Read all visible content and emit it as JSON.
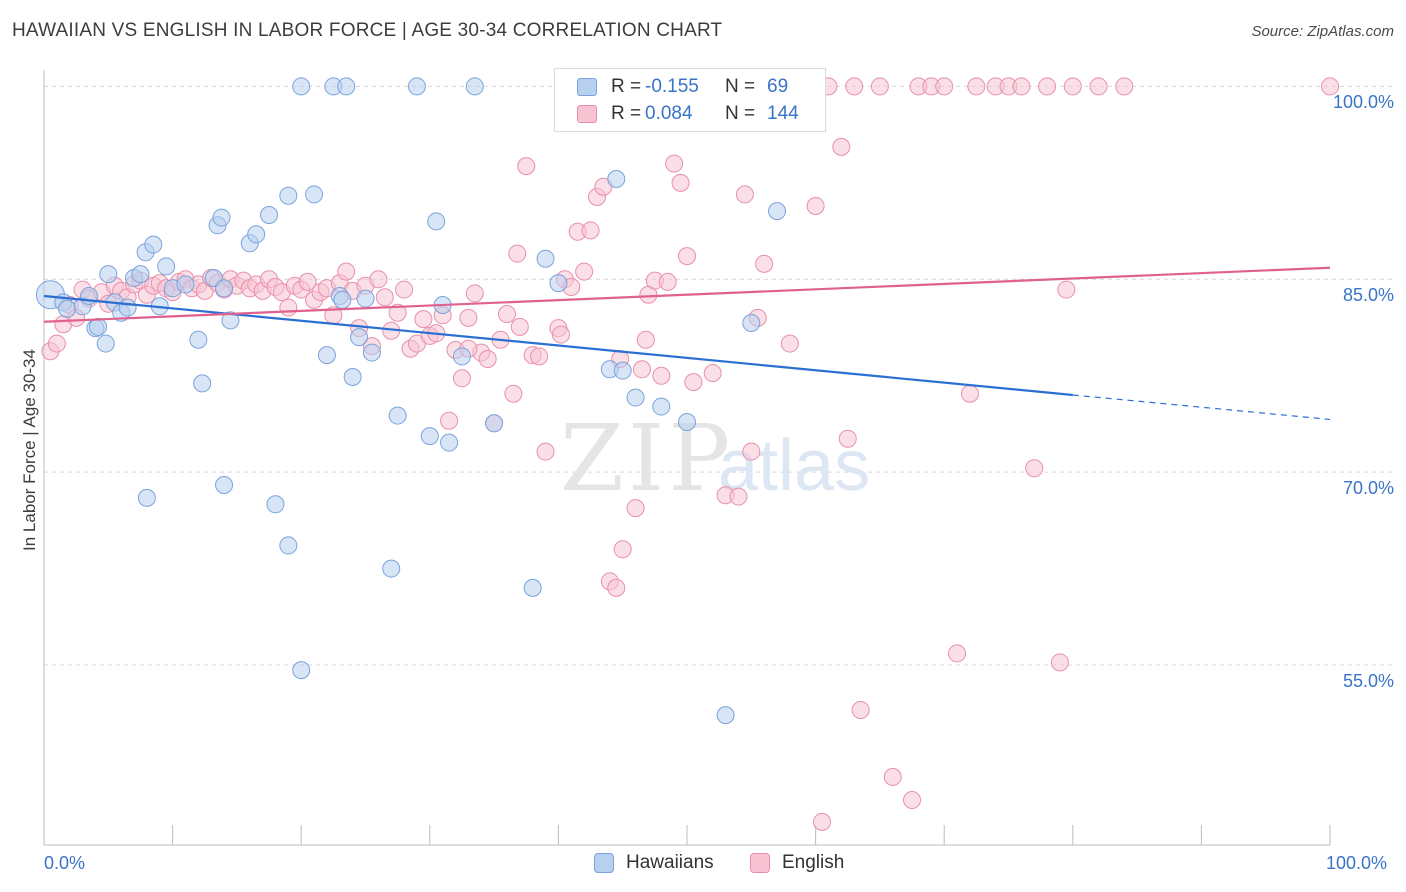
{
  "title": "HAWAIIAN VS ENGLISH IN LABOR FORCE | AGE 30-34 CORRELATION CHART",
  "source": "Source: ZipAtlas.com",
  "watermark": {
    "zip": "ZIP",
    "atlas": "atlas"
  },
  "legend": {
    "rows": [
      {
        "r_label": "R =",
        "r_value": "-0.155",
        "n_label": "N =",
        "n_value": "69",
        "fill": "#b8d0f0",
        "stroke": "#7aa3dc"
      },
      {
        "r_label": "R =",
        "r_value": "0.084",
        "n_label": "N =",
        "n_value": "144",
        "fill": "#f8c4d4",
        "stroke": "#e88fac"
      }
    ]
  },
  "bottom_legend": {
    "items": [
      {
        "label": "Hawaiians",
        "fill": "#b8d0f0",
        "stroke": "#7aa3dc"
      },
      {
        "label": "English",
        "fill": "#f8c4d4",
        "stroke": "#e88fac"
      }
    ]
  },
  "chart_data": {
    "type": "scatter",
    "title": "HAWAIIAN VS ENGLISH IN LABOR FORCE | AGE 30-34 CORRELATION CHART",
    "xlabel": "",
    "ylabel": "In Labor Force | Age 30-34",
    "xlim": [
      0,
      100
    ],
    "ylim": [
      41,
      100.5
    ],
    "x_tick_labels": [
      "0.0%",
      "100.0%"
    ],
    "y_ticks": [
      {
        "value": 100,
        "label": "100.0%"
      },
      {
        "value": 85,
        "label": "85.0%"
      },
      {
        "value": 70,
        "label": "70.0%"
      },
      {
        "value": 55,
        "label": "55.0%"
      }
    ],
    "grid": true,
    "legend_placement": "top-center",
    "colors": {
      "hawaiians": "#7aa3dc",
      "hawaiians_line": "#2a6fd1",
      "english": "#e88fac",
      "english_line": "#e0618e",
      "tick_label": "#3a74c8"
    },
    "series": [
      {
        "name": "Hawaiians",
        "r": -0.155,
        "n": 69,
        "trend": {
          "x0": 0,
          "y0": 83.7,
          "x1": 80,
          "y1": 76.0,
          "dash_to_x": 100,
          "dash_to_y": 74.1
        },
        "points": [
          [
            0.5,
            83.8
          ],
          [
            1.5,
            83.2
          ],
          [
            1.8,
            82.7
          ],
          [
            3.0,
            82.9
          ],
          [
            3.5,
            83.7
          ],
          [
            4.0,
            81.2
          ],
          [
            4.2,
            81.3
          ],
          [
            4.8,
            80.0
          ],
          [
            5.0,
            85.4
          ],
          [
            5.5,
            83.2
          ],
          [
            6.0,
            82.4
          ],
          [
            6.5,
            82.8
          ],
          [
            7.0,
            85.1
          ],
          [
            7.5,
            85.4
          ],
          [
            7.9,
            87.1
          ],
          [
            8.5,
            87.7
          ],
          [
            9.0,
            82.9
          ],
          [
            9.5,
            86.0
          ],
          [
            10.0,
            84.3
          ],
          [
            11.0,
            84.6
          ],
          [
            12.0,
            80.3
          ],
          [
            12.3,
            76.9
          ],
          [
            13.2,
            85.1
          ],
          [
            13.5,
            89.2
          ],
          [
            13.8,
            89.8
          ],
          [
            14.0,
            84.3
          ],
          [
            14.5,
            81.8
          ],
          [
            16.0,
            87.8
          ],
          [
            16.5,
            88.5
          ],
          [
            17.5,
            90.0
          ],
          [
            19.0,
            91.5
          ],
          [
            20.0,
            100.0
          ],
          [
            21.0,
            91.6
          ],
          [
            22.0,
            79.1
          ],
          [
            22.5,
            100.0
          ],
          [
            23.0,
            83.7
          ],
          [
            23.2,
            83.4
          ],
          [
            23.5,
            100.0
          ],
          [
            24.0,
            77.4
          ],
          [
            24.5,
            80.5
          ],
          [
            25.0,
            83.5
          ],
          [
            25.5,
            79.3
          ],
          [
            27.0,
            62.5
          ],
          [
            27.5,
            74.4
          ],
          [
            29.0,
            100.0
          ],
          [
            30.0,
            72.8
          ],
          [
            30.5,
            89.5
          ],
          [
            31.0,
            83.0
          ],
          [
            31.5,
            72.3
          ],
          [
            32.5,
            79.0
          ],
          [
            33.5,
            100.0
          ],
          [
            35.0,
            73.8
          ],
          [
            38.0,
            61.0
          ],
          [
            39.0,
            86.6
          ],
          [
            40.0,
            84.7
          ],
          [
            44.0,
            78.0
          ],
          [
            44.5,
            92.8
          ],
          [
            45.0,
            77.9
          ],
          [
            46.0,
            75.8
          ],
          [
            48.0,
            75.1
          ],
          [
            50.0,
            73.9
          ],
          [
            53.0,
            51.1
          ],
          [
            55.0,
            81.6
          ],
          [
            57.0,
            90.3
          ],
          [
            8.0,
            68.0
          ],
          [
            14.0,
            69.0
          ],
          [
            18.0,
            67.5
          ],
          [
            19.0,
            64.3
          ],
          [
            20.0,
            54.6
          ]
        ]
      },
      {
        "name": "English",
        "r": 0.084,
        "n": 144,
        "trend": {
          "x0": 0,
          "y0": 81.7,
          "x1": 100,
          "y1": 85.9
        },
        "points": [
          [
            0.5,
            79.4
          ],
          [
            1.0,
            80.0
          ],
          [
            1.5,
            81.5
          ],
          [
            2.0,
            83.0
          ],
          [
            2.5,
            82.0
          ],
          [
            3.0,
            84.2
          ],
          [
            3.5,
            83.5
          ],
          [
            4.5,
            84.0
          ],
          [
            5.0,
            83.1
          ],
          [
            5.5,
            84.5
          ],
          [
            6.0,
            84.1
          ],
          [
            6.5,
            83.6
          ],
          [
            7.0,
            84.6
          ],
          [
            7.5,
            84.9
          ],
          [
            8.0,
            83.8
          ],
          [
            8.5,
            84.5
          ],
          [
            9.0,
            84.7
          ],
          [
            9.5,
            84.3
          ],
          [
            10.0,
            84.0
          ],
          [
            10.5,
            84.8
          ],
          [
            11.0,
            85.0
          ],
          [
            11.5,
            84.3
          ],
          [
            12.0,
            84.6
          ],
          [
            12.5,
            84.1
          ],
          [
            13.0,
            85.1
          ],
          [
            13.5,
            84.7
          ],
          [
            14.0,
            84.2
          ],
          [
            14.5,
            85.0
          ],
          [
            15.0,
            84.5
          ],
          [
            15.5,
            84.9
          ],
          [
            16.0,
            84.3
          ],
          [
            16.5,
            84.6
          ],
          [
            17.0,
            84.1
          ],
          [
            17.5,
            85.0
          ],
          [
            18.0,
            84.4
          ],
          [
            18.5,
            84.0
          ],
          [
            19.0,
            82.8
          ],
          [
            19.5,
            84.5
          ],
          [
            20.0,
            84.2
          ],
          [
            20.5,
            84.8
          ],
          [
            21.0,
            83.4
          ],
          [
            21.5,
            84.0
          ],
          [
            22.0,
            84.3
          ],
          [
            22.5,
            82.2
          ],
          [
            23.0,
            84.7
          ],
          [
            23.5,
            85.6
          ],
          [
            24.0,
            84.1
          ],
          [
            24.5,
            81.2
          ],
          [
            25.0,
            84.5
          ],
          [
            25.5,
            79.8
          ],
          [
            26.0,
            85.0
          ],
          [
            26.5,
            83.6
          ],
          [
            27.0,
            81.0
          ],
          [
            27.5,
            82.4
          ],
          [
            28.0,
            84.2
          ],
          [
            28.5,
            79.6
          ],
          [
            29.0,
            80.0
          ],
          [
            29.5,
            81.9
          ],
          [
            30.0,
            80.6
          ],
          [
            30.5,
            80.8
          ],
          [
            31.0,
            82.2
          ],
          [
            31.5,
            74.0
          ],
          [
            32.0,
            79.5
          ],
          [
            32.5,
            77.3
          ],
          [
            33.0,
            82.0
          ],
          [
            33.5,
            83.9
          ],
          [
            34.0,
            79.3
          ],
          [
            34.5,
            78.8
          ],
          [
            35.0,
            73.8
          ],
          [
            35.5,
            80.3
          ],
          [
            36.0,
            82.3
          ],
          [
            36.5,
            76.1
          ],
          [
            37.0,
            81.3
          ],
          [
            37.5,
            93.8
          ],
          [
            38.0,
            79.1
          ],
          [
            38.5,
            79.0
          ],
          [
            39.0,
            71.6
          ],
          [
            40.0,
            81.2
          ],
          [
            40.5,
            85.0
          ],
          [
            41.0,
            84.4
          ],
          [
            41.5,
            88.7
          ],
          [
            42.0,
            85.6
          ],
          [
            42.5,
            88.8
          ],
          [
            43.0,
            91.4
          ],
          [
            43.5,
            92.2
          ],
          [
            44.0,
            61.5
          ],
          [
            44.5,
            61.0
          ],
          [
            45.0,
            64.0
          ],
          [
            46.0,
            67.2
          ],
          [
            46.5,
            78.0
          ],
          [
            47.0,
            83.8
          ],
          [
            47.5,
            84.9
          ],
          [
            48.0,
            77.5
          ],
          [
            48.5,
            84.8
          ],
          [
            49.0,
            94.0
          ],
          [
            49.5,
            92.5
          ],
          [
            50.0,
            86.8
          ],
          [
            50.5,
            77.0
          ],
          [
            51.0,
            100.0
          ],
          [
            52.0,
            77.7
          ],
          [
            53.0,
            68.2
          ],
          [
            54.0,
            68.1
          ],
          [
            54.5,
            91.6
          ],
          [
            55.0,
            71.6
          ],
          [
            55.5,
            82.0
          ],
          [
            56.0,
            86.2
          ],
          [
            58.0,
            80.0
          ],
          [
            59.0,
            100.0
          ],
          [
            60.0,
            90.7
          ],
          [
            61.0,
            100.0
          ],
          [
            62.0,
            95.3
          ],
          [
            62.5,
            72.6
          ],
          [
            63.0,
            100.0
          ],
          [
            63.5,
            51.5
          ],
          [
            65.0,
            100.0
          ],
          [
            66.0,
            46.3
          ],
          [
            67.5,
            44.5
          ],
          [
            68.0,
            100.0
          ],
          [
            69.0,
            100.0
          ],
          [
            70.0,
            100.0
          ],
          [
            71.0,
            55.9
          ],
          [
            72.0,
            76.1
          ],
          [
            72.5,
            100.0
          ],
          [
            74.0,
            100.0
          ],
          [
            75.0,
            100.0
          ],
          [
            76.0,
            100.0
          ],
          [
            77.0,
            70.3
          ],
          [
            78.0,
            100.0
          ],
          [
            79.0,
            55.2
          ],
          [
            79.5,
            84.2
          ],
          [
            80.0,
            100.0
          ],
          [
            82.0,
            100.0
          ],
          [
            84.0,
            100.0
          ],
          [
            60.5,
            42.8
          ],
          [
            100.0,
            100.0
          ],
          [
            33.0,
            79.6
          ],
          [
            36.8,
            87.0
          ],
          [
            40.2,
            80.7
          ],
          [
            44.8,
            78.8
          ],
          [
            46.8,
            80.3
          ]
        ]
      }
    ]
  }
}
